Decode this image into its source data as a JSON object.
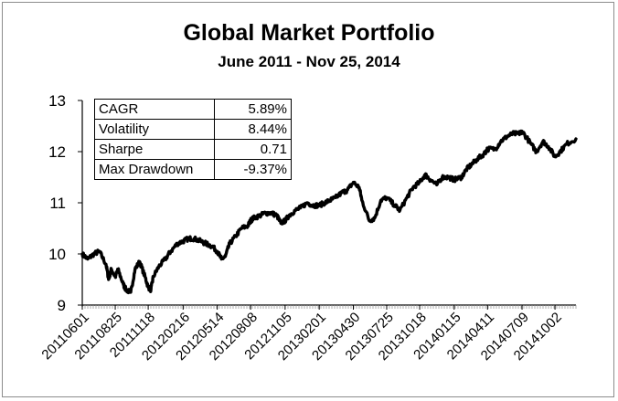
{
  "chart_data": {
    "type": "line",
    "title": "Global Market Portfolio",
    "subtitle": "June 2011 - Nov 25, 2014",
    "xlabel": "",
    "ylabel": "",
    "ylim": [
      9,
      13
    ],
    "yticks": [
      "9",
      "10",
      "11",
      "12",
      "13"
    ],
    "xticks": [
      "20110601",
      "20110825",
      "20111118",
      "20120216",
      "20120514",
      "20120808",
      "20121105",
      "20130201",
      "20130430",
      "20130725",
      "20131018",
      "20140115",
      "20140411",
      "20140709",
      "20141002"
    ],
    "grid": false,
    "legend": "none",
    "line_color": "#000000",
    "series": [
      {
        "x": [
          "20110601",
          "20110615",
          "20110701",
          "20110715",
          "20110801",
          "20110808",
          "20110815",
          "20110825",
          "20110901",
          "20110915",
          "20110922",
          "20111004",
          "20111015",
          "20111027",
          "20111110",
          "20111118",
          "20111125",
          "20111201",
          "20111215",
          "20120101",
          "20120115",
          "20120201",
          "20120216",
          "20120301",
          "20120315",
          "20120401",
          "20120415",
          "20120501",
          "20120514",
          "20120525",
          "20120604",
          "20120615",
          "20120701",
          "20120715",
          "20120801",
          "20120808",
          "20120815",
          "20120901",
          "20120915",
          "20121001",
          "20121015",
          "20121025",
          "20121105",
          "20121115",
          "20121201",
          "20121215",
          "20130101",
          "20130115",
          "20130201",
          "20130215",
          "20130301",
          "20130315",
          "20130401",
          "20130415",
          "20130430",
          "20130515",
          "20130522",
          "20130610",
          "20130624",
          "20130710",
          "20130725",
          "20130815",
          "20130828",
          "20130915",
          "20131001",
          "20131018",
          "20131101",
          "20131115",
          "20131201",
          "20131215",
          "20140101",
          "20140115",
          "20140203",
          "20140215",
          "20140301",
          "20140315",
          "20140401",
          "20140411",
          "20140501",
          "20140515",
          "20140601",
          "20140615",
          "20140701",
          "20140709",
          "20140801",
          "20140815",
          "20140901",
          "20140915",
          "20141002",
          "20141015",
          "20141101",
          "20141125"
        ],
        "values": [
          10.0,
          9.9,
          10.0,
          10.05,
          9.8,
          9.5,
          9.7,
          9.55,
          9.7,
          9.4,
          9.3,
          9.25,
          9.7,
          9.85,
          9.55,
          9.35,
          9.3,
          9.55,
          9.75,
          9.9,
          10.05,
          10.2,
          10.25,
          10.3,
          10.3,
          10.25,
          10.2,
          10.15,
          10.05,
          9.9,
          9.95,
          10.2,
          10.35,
          10.5,
          10.55,
          10.65,
          10.7,
          10.75,
          10.8,
          10.8,
          10.75,
          10.6,
          10.65,
          10.75,
          10.85,
          10.9,
          11.0,
          10.95,
          10.95,
          11.0,
          11.05,
          11.1,
          11.2,
          11.25,
          11.4,
          11.3,
          11.05,
          10.65,
          10.7,
          11.05,
          11.1,
          10.95,
          10.85,
          11.1,
          11.3,
          11.4,
          11.55,
          11.45,
          11.35,
          11.5,
          11.5,
          11.45,
          11.5,
          11.65,
          11.75,
          11.85,
          11.95,
          12.05,
          12.05,
          12.2,
          12.3,
          12.35,
          12.35,
          12.4,
          12.15,
          12.0,
          12.2,
          12.1,
          11.9,
          12.0,
          12.15,
          12.25
        ]
      }
    ]
  },
  "stats_table": [
    {
      "label": "CAGR",
      "value": "5.89%"
    },
    {
      "label": "Volatility",
      "value": "8.44%"
    },
    {
      "label": "Sharpe",
      "value": "0.71"
    },
    {
      "label": "Max Drawdown",
      "value": "-9.37%"
    }
  ]
}
